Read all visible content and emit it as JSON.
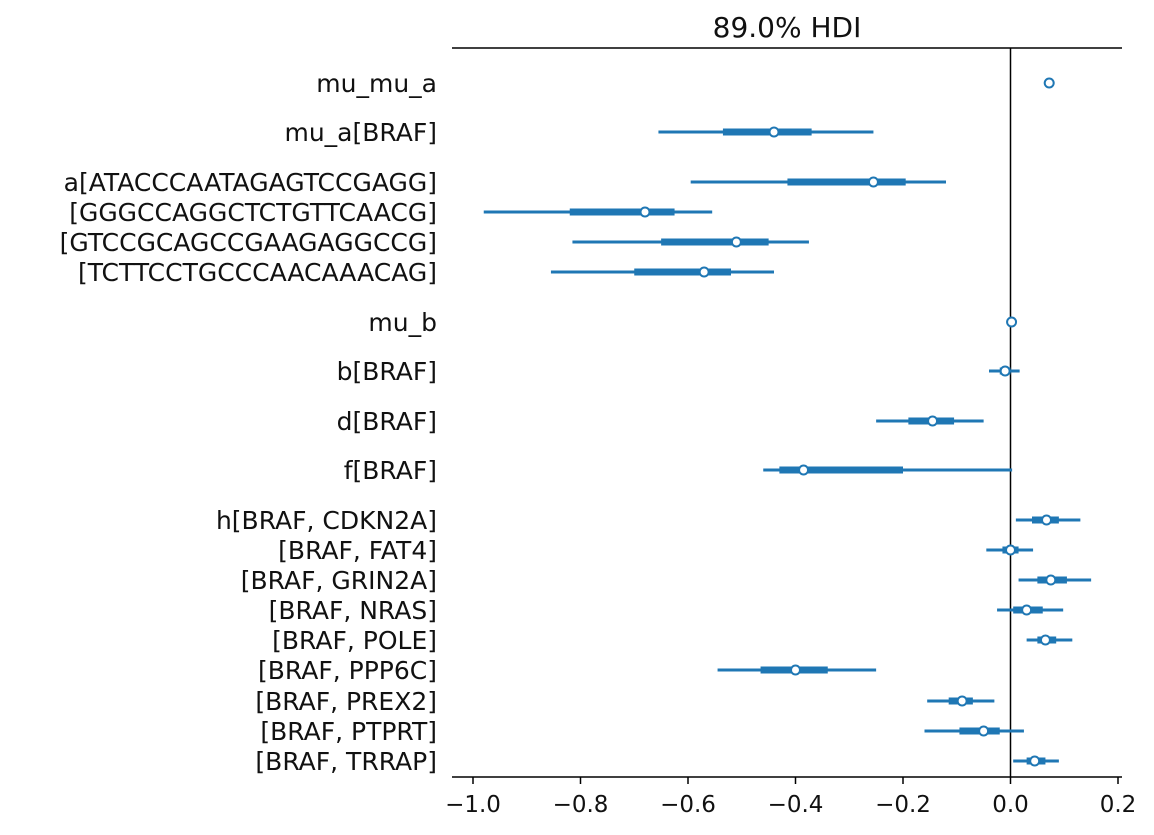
{
  "chart_data": {
    "type": "forest",
    "title": "89.0% HDI",
    "xlim": [
      -1.04,
      0.205
    ],
    "xticks": [
      -1.0,
      -0.8,
      -0.6,
      -0.4,
      -0.2,
      0.0,
      0.2
    ],
    "xtick_labels": [
      "−1.0",
      "−0.8",
      "−0.6",
      "−0.4",
      "−0.2",
      "0.0",
      "0.2"
    ],
    "reference_line_x": 0.0,
    "color": "#1f77b4",
    "rows": [
      {
        "label": "mu_mu_a",
        "median": 0.072,
        "iqr": [
          0.072,
          0.072
        ],
        "hdi": [
          0.072,
          0.072
        ]
      },
      {
        "label": "mu_a[BRAF]",
        "median": -0.44,
        "iqr": [
          -0.535,
          -0.37
        ],
        "hdi": [
          -0.655,
          -0.255
        ]
      },
      {
        "label": "a[ATACCCAATAGAGTCCGAGG]",
        "median": -0.255,
        "iqr": [
          -0.415,
          -0.195
        ],
        "hdi": [
          -0.595,
          -0.12
        ]
      },
      {
        "label": "[GGGCCAGGCTCTGTTCAACG]",
        "median": -0.68,
        "iqr": [
          -0.82,
          -0.625
        ],
        "hdi": [
          -0.98,
          -0.555
        ]
      },
      {
        "label": "[GTCCGCAGCCGAAGAGGCCG]",
        "median": -0.51,
        "iqr": [
          -0.65,
          -0.45
        ],
        "hdi": [
          -0.815,
          -0.375
        ]
      },
      {
        "label": "[TCTTCCTGCCCAACAAACAG]",
        "median": -0.57,
        "iqr": [
          -0.7,
          -0.52
        ],
        "hdi": [
          -0.855,
          -0.44
        ]
      },
      {
        "label": "mu_b",
        "median": 0.002,
        "iqr": [
          0.002,
          0.002
        ],
        "hdi": [
          0.002,
          0.002
        ]
      },
      {
        "label": "b[BRAF]",
        "median": -0.01,
        "iqr": [
          -0.02,
          0.0
        ],
        "hdi": [
          -0.04,
          0.017
        ]
      },
      {
        "label": "d[BRAF]",
        "median": -0.145,
        "iqr": [
          -0.19,
          -0.105
        ],
        "hdi": [
          -0.25,
          -0.05
        ]
      },
      {
        "label": "f[BRAF]",
        "median": -0.385,
        "iqr": [
          -0.43,
          -0.2
        ],
        "hdi": [
          -0.46,
          0.003
        ]
      },
      {
        "label": "h[BRAF, CDKN2A]",
        "median": 0.067,
        "iqr": [
          0.04,
          0.09
        ],
        "hdi": [
          0.01,
          0.13
        ]
      },
      {
        "label": "[BRAF, FAT4]",
        "median": 0.0,
        "iqr": [
          -0.015,
          0.015
        ],
        "hdi": [
          -0.045,
          0.042
        ]
      },
      {
        "label": "[BRAF, GRIN2A]",
        "median": 0.075,
        "iqr": [
          0.05,
          0.105
        ],
        "hdi": [
          0.015,
          0.15
        ]
      },
      {
        "label": "[BRAF, NRAS]",
        "median": 0.03,
        "iqr": [
          0.005,
          0.06
        ],
        "hdi": [
          -0.025,
          0.098
        ]
      },
      {
        "label": "[BRAF, POLE]",
        "median": 0.065,
        "iqr": [
          0.05,
          0.085
        ],
        "hdi": [
          0.03,
          0.115
        ]
      },
      {
        "label": "[BRAF, PPP6C]",
        "median": -0.4,
        "iqr": [
          -0.465,
          -0.34
        ],
        "hdi": [
          -0.545,
          -0.25
        ]
      },
      {
        "label": "[BRAF, PREX2]",
        "median": -0.09,
        "iqr": [
          -0.115,
          -0.07
        ],
        "hdi": [
          -0.155,
          -0.03
        ]
      },
      {
        "label": "[BRAF, PTPRT]",
        "median": -0.05,
        "iqr": [
          -0.095,
          -0.02
        ],
        "hdi": [
          -0.16,
          0.025
        ]
      },
      {
        "label": "[BRAF, TRRAP]",
        "median": 0.045,
        "iqr": [
          0.03,
          0.065
        ],
        "hdi": [
          0.005,
          0.09
        ]
      }
    ]
  }
}
